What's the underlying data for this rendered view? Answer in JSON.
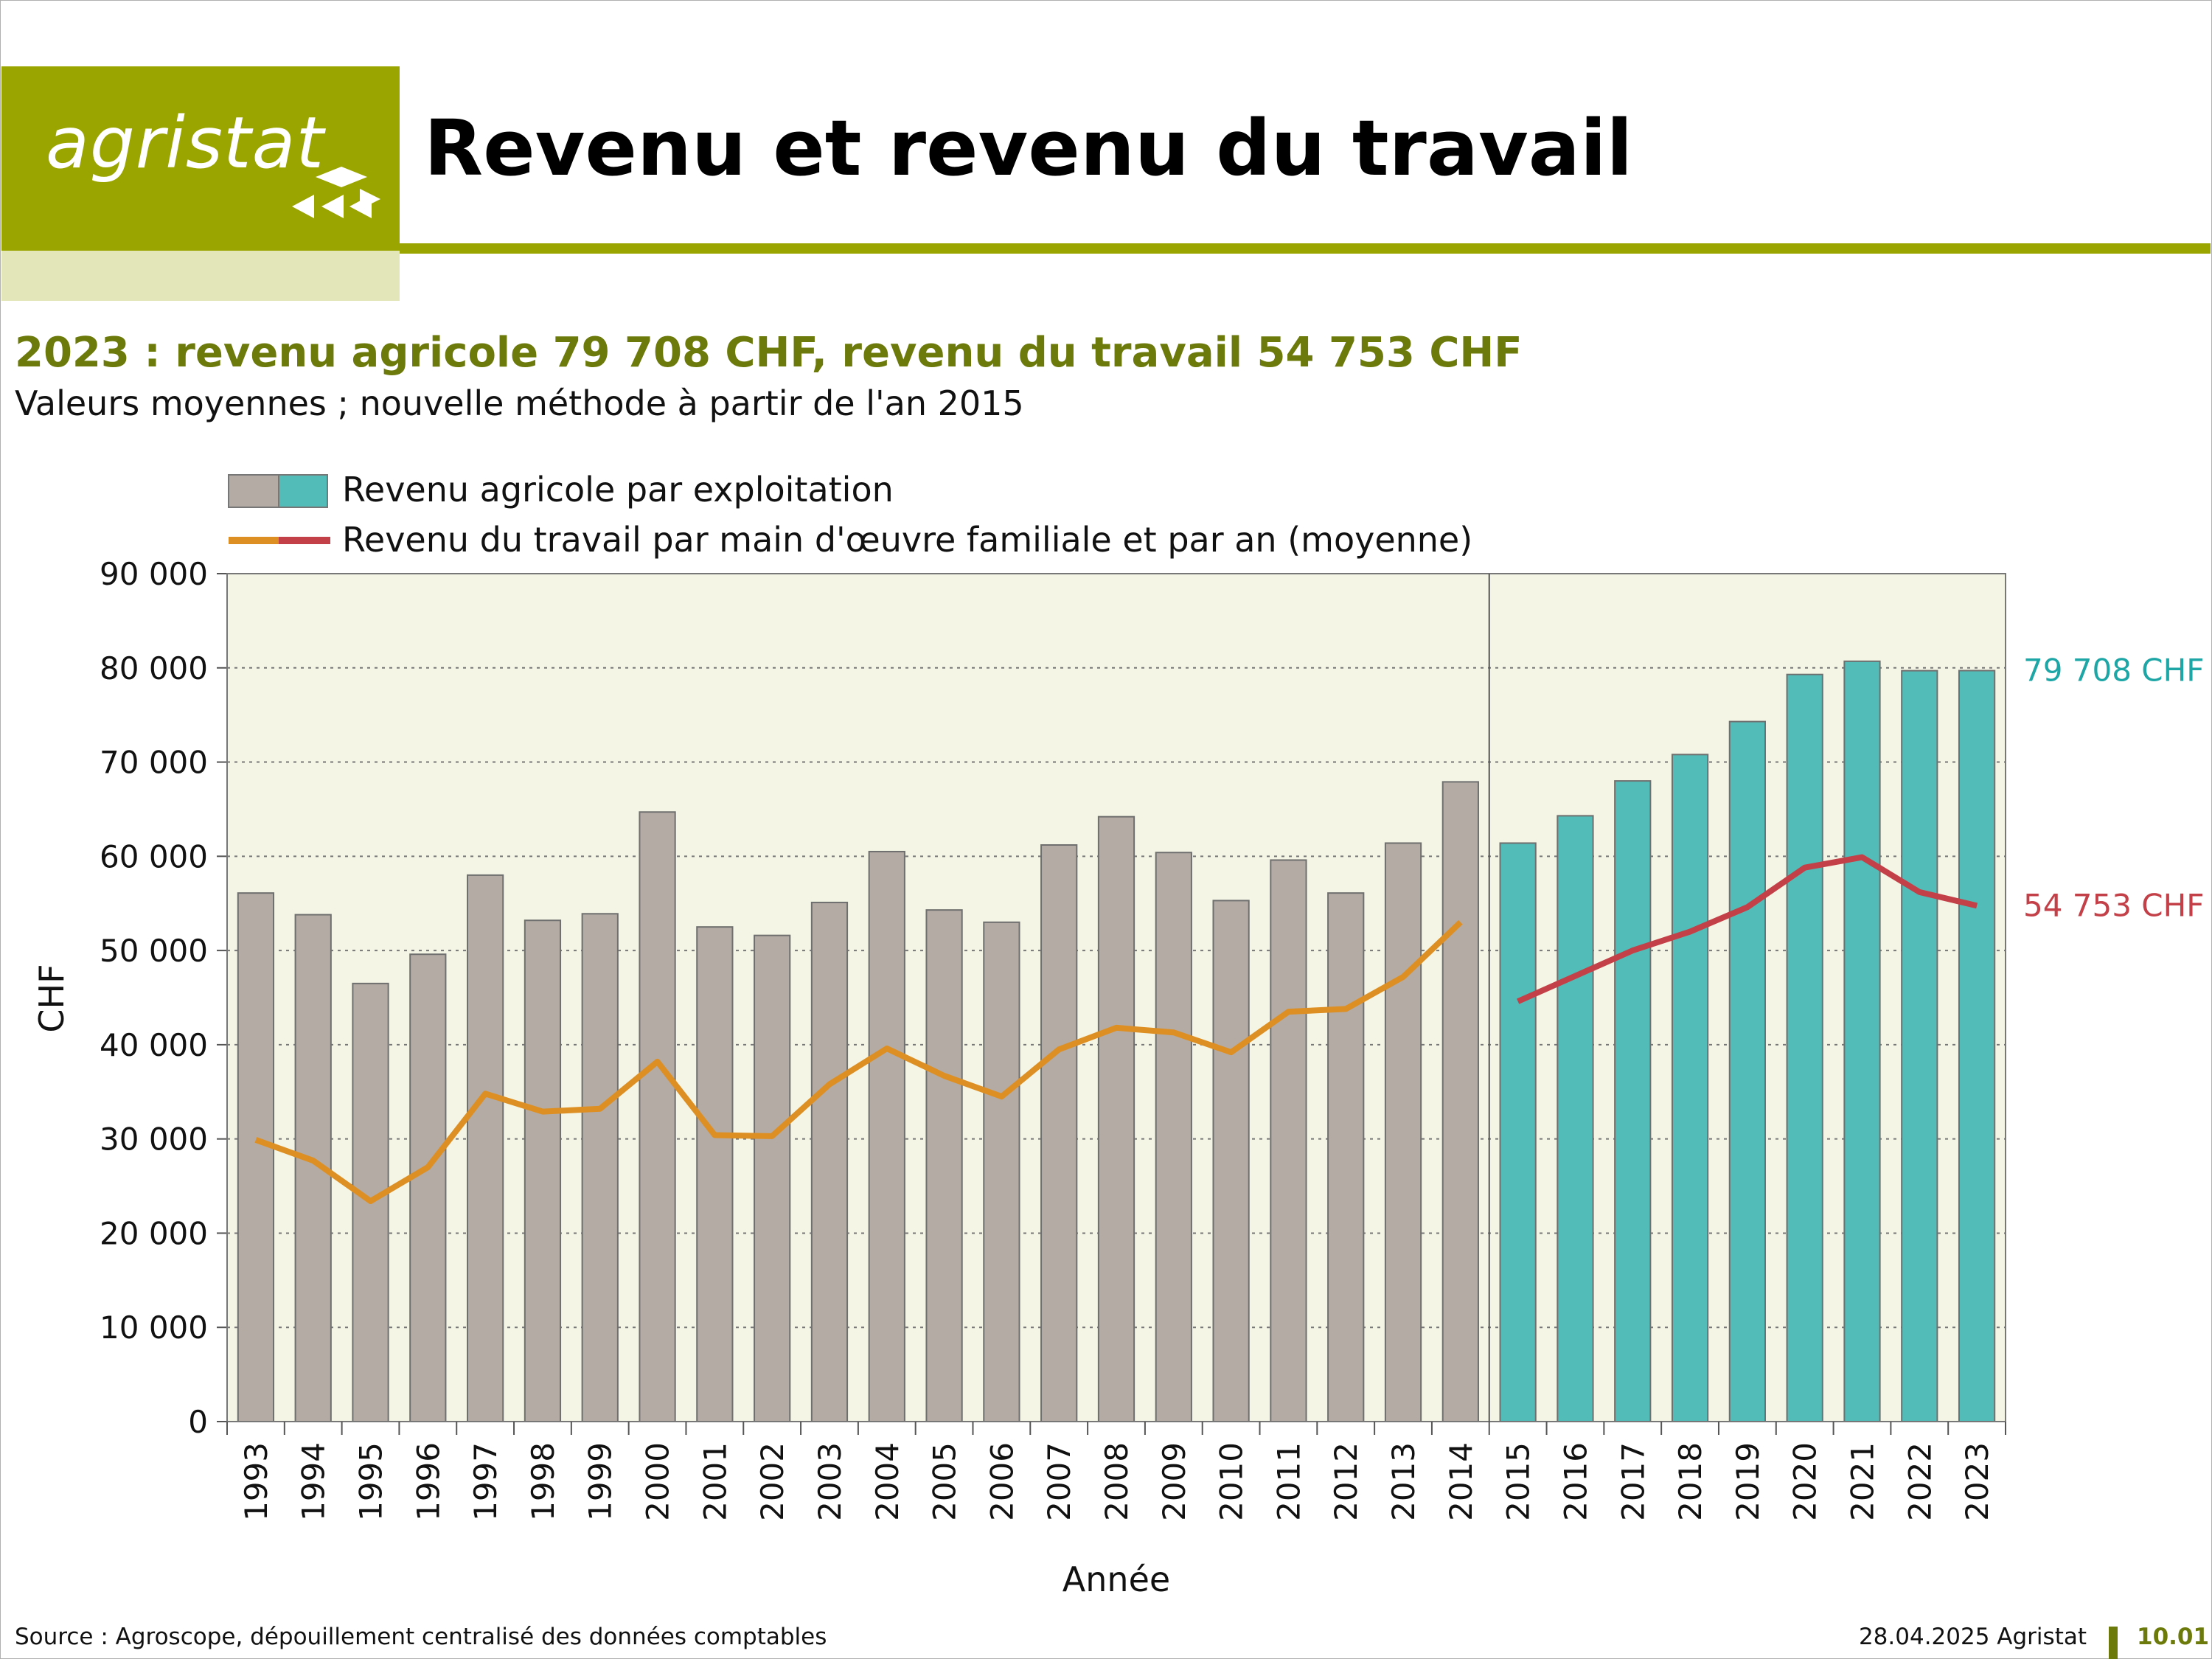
{
  "header": {
    "logo_text": "agristat",
    "title": "Revenu et revenu du travail"
  },
  "headline": "2023 : revenu agricole 79 708 CHF, revenu du travail 54 753 CHF",
  "subhead": "Valeurs moyennes ; nouvelle méthode à partir de l'an 2015",
  "footer": {
    "source": "Source : Agroscope, dépouillement centralisé des données comptables",
    "date": "28.04.2025 Agristat",
    "page": "10.01"
  },
  "colors": {
    "brand": "#9ba500",
    "bar_old": "#b3aba4",
    "bar_new": "#52bdb8",
    "line_old": "#de8f23",
    "line_new": "#c44048",
    "plot_bg": "#f4f5e4"
  },
  "chart_data": {
    "type": "bar",
    "xlabel": "Année",
    "ylabel": "CHF",
    "ylim": [
      0,
      90000
    ],
    "yticks": [
      "0",
      "10 000",
      "20 000",
      "30 000",
      "40 000",
      "50 000",
      "60 000",
      "70 000",
      "80 000",
      "90 000"
    ],
    "grid": "horizontal dotted",
    "legend_placement": "top-left",
    "method_break_after": "2014",
    "categories": [
      "1993",
      "1994",
      "1995",
      "1996",
      "1997",
      "1998",
      "1999",
      "2000",
      "2001",
      "2002",
      "2003",
      "2004",
      "2005",
      "2006",
      "2007",
      "2008",
      "2009",
      "2010",
      "2011",
      "2012",
      "2013",
      "2014",
      "2015",
      "2016",
      "2017",
      "2018",
      "2019",
      "2020",
      "2021",
      "2022",
      "2023"
    ],
    "series": [
      {
        "name": "Revenu agricole par exploitation",
        "kind": "bar",
        "values": [
          56100,
          53800,
          46500,
          49600,
          58000,
          53200,
          53900,
          64700,
          52500,
          51600,
          55100,
          60500,
          54300,
          53000,
          61200,
          64200,
          60400,
          55300,
          59600,
          56100,
          61400,
          67900,
          61400,
          64300,
          68000,
          70800,
          74300,
          79300,
          80700,
          79700,
          79708
        ]
      },
      {
        "name": "Revenu du travail par main d'œuvre familiale et par an (moyenne)",
        "kind": "line",
        "values": [
          29900,
          27700,
          23400,
          27000,
          34800,
          32900,
          33200,
          38200,
          30400,
          30300,
          35800,
          39600,
          36700,
          34500,
          39500,
          41800,
          41300,
          39200,
          43500,
          43800,
          47200,
          53000,
          44600,
          47300,
          50000,
          52000,
          54600,
          58800,
          59900,
          56200,
          54753
        ]
      }
    ],
    "annotations": [
      {
        "text": "79 708 CHF",
        "color": "#1ea5a5",
        "y": 79708
      },
      {
        "text": "54 753 CHF",
        "color": "#c44048",
        "y": 54753
      }
    ]
  }
}
